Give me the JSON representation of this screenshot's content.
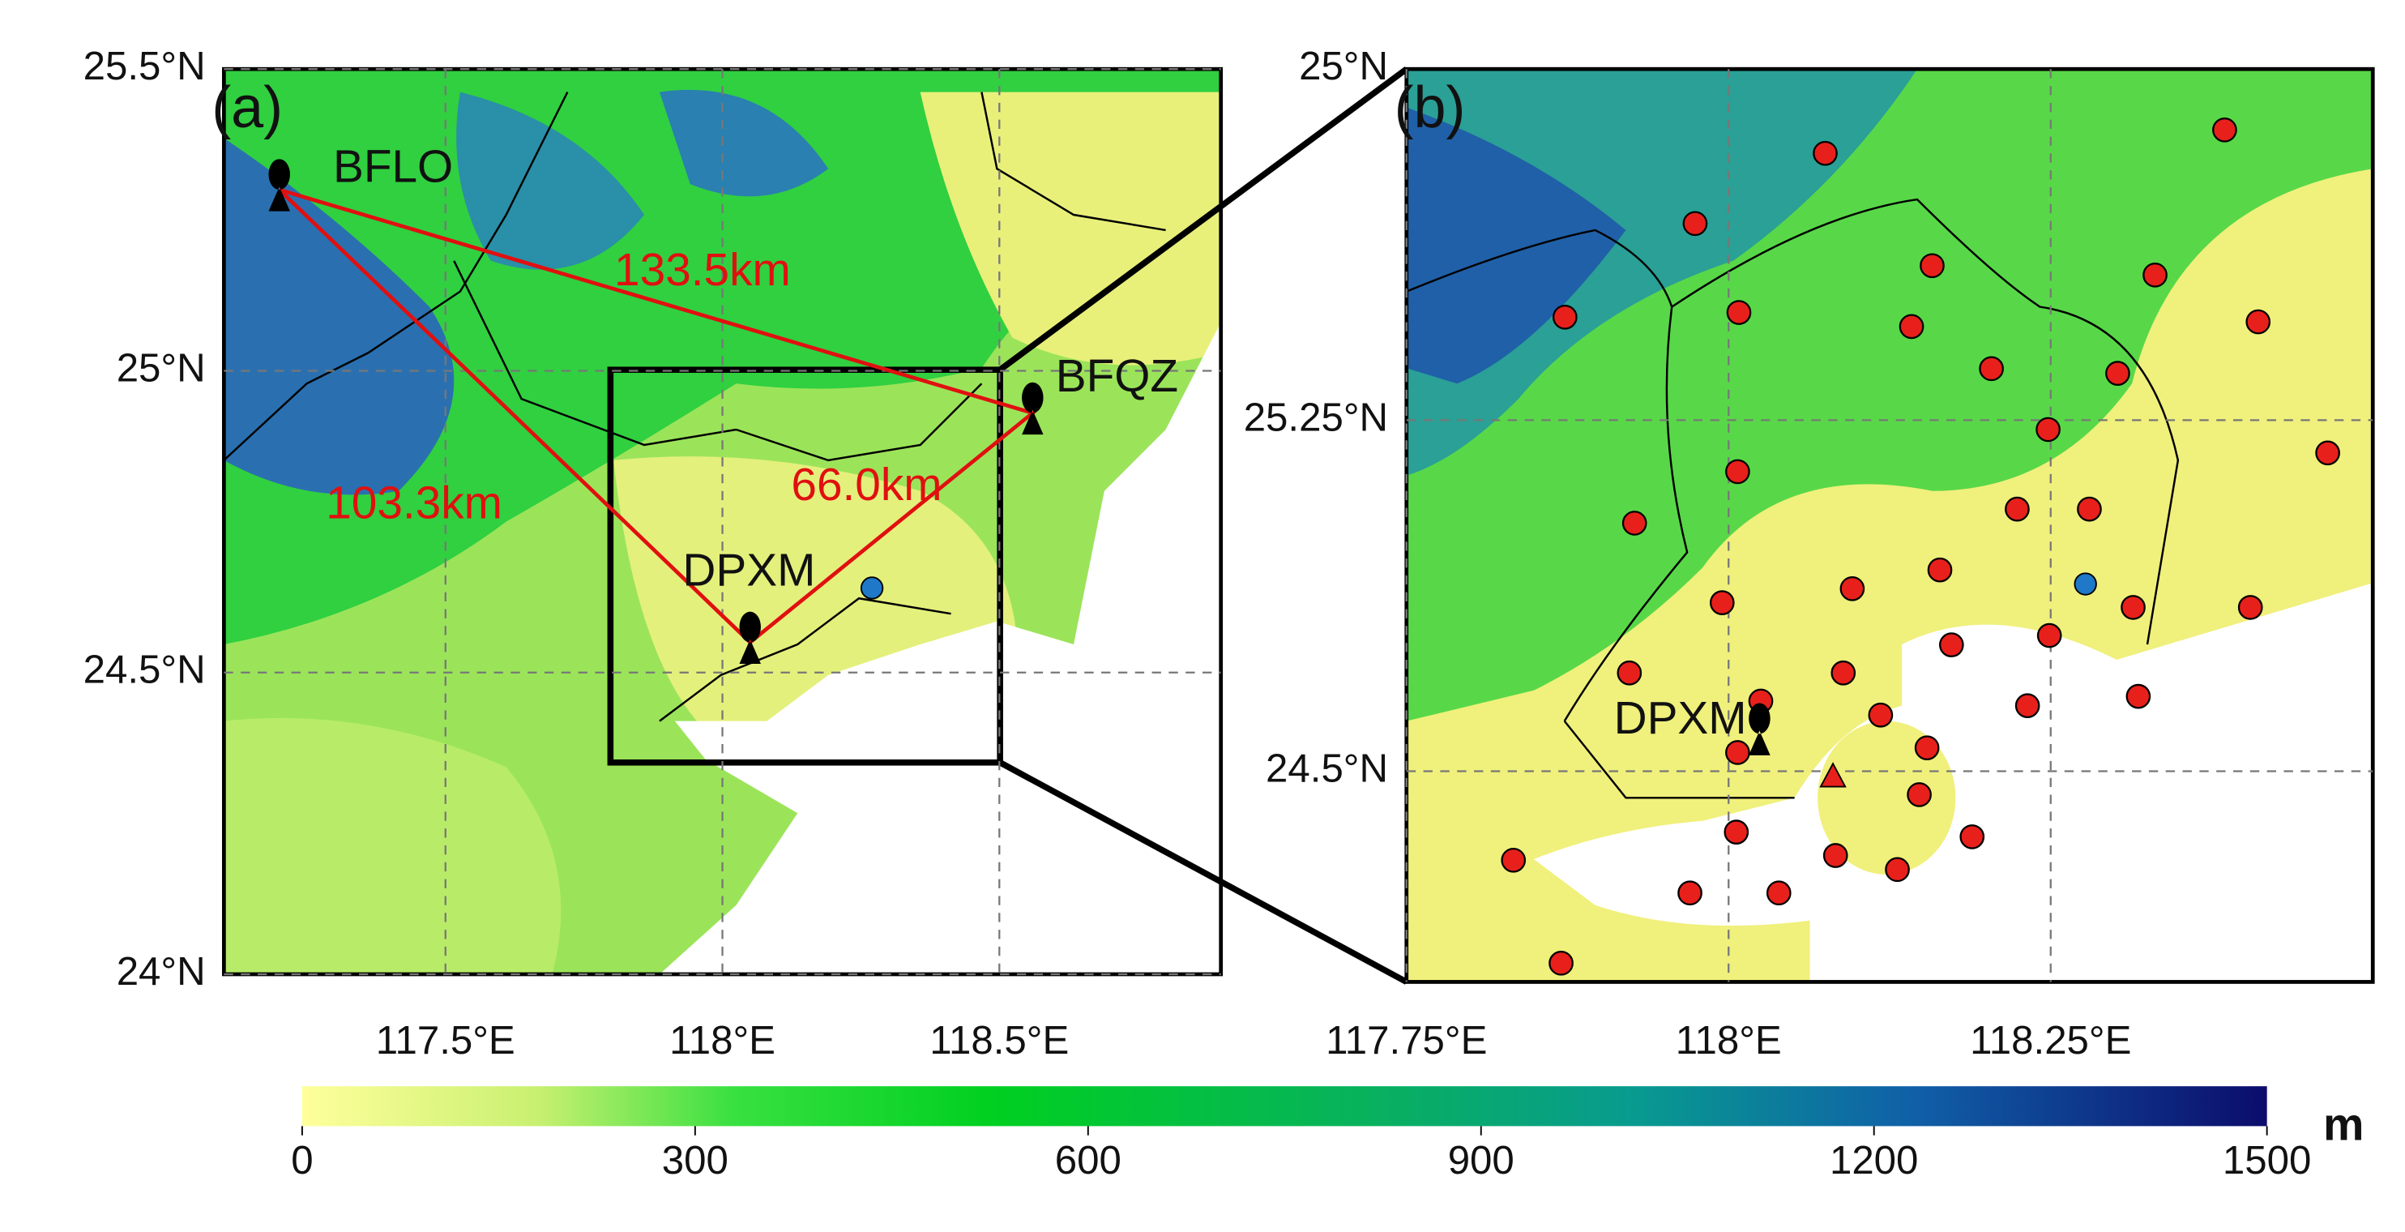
{
  "panels": [
    {
      "label": "(a)",
      "lonlim": [
        117.1,
        118.9
      ],
      "latlim": [
        24,
        25.5
      ],
      "xticks": [
        {
          "value": 117.5,
          "label": "117.5°E"
        },
        {
          "value": 118,
          "label": "118°E"
        },
        {
          "value": 118.5,
          "label": "118.5°E"
        }
      ],
      "yticks": [
        {
          "value": 24,
          "label": "24°N"
        },
        {
          "value": 24.5,
          "label": "24.5°N"
        },
        {
          "value": 25,
          "label": "25°N"
        },
        {
          "value": 25.5,
          "label": "25.5°N"
        }
      ],
      "stations": [
        {
          "name": "BFLO",
          "lon": 117.2,
          "lat": 25.3
        },
        {
          "name": "BFQZ",
          "lon": 118.56,
          "lat": 24.93
        },
        {
          "name": "DPXM",
          "lon": 118.05,
          "lat": 24.55
        }
      ],
      "distances": [
        "133.5km",
        "103.3km",
        "66.0km"
      ],
      "blue_site": {
        "lon": 118.27,
        "lat": 24.64
      }
    },
    {
      "label": "(b)",
      "corner_label": "25°N",
      "lonlim": [
        117.75,
        118.5
      ],
      "latlim": [
        24.05,
        26.0
      ],
      "xticks": [
        {
          "value": 117.75,
          "label": "117.75°E"
        },
        {
          "value": 118,
          "label": "118°E"
        },
        {
          "value": 118.25,
          "label": "118.25°E"
        }
      ],
      "yticks": [
        {
          "value": 24.5,
          "label": "24.5°N"
        },
        {
          "value": 25.25,
          "label": "25.25°N"
        }
      ],
      "stations": [
        {
          "name": "DPXM",
          "lon": 118.024,
          "lat": 24.58
        }
      ],
      "blue_site": {
        "lon": 118.277,
        "lat": 24.9
      },
      "red_site": {
        "lon": 118.081,
        "lat": 24.49
      },
      "sites": [
        {
          "lon": 118.075,
          "lat": 25.82
        },
        {
          "lon": 118.385,
          "lat": 25.87
        },
        {
          "lon": 117.974,
          "lat": 25.67
        },
        {
          "lon": 117.873,
          "lat": 25.47
        },
        {
          "lon": 118.008,
          "lat": 25.48
        },
        {
          "lon": 118.158,
          "lat": 25.58
        },
        {
          "lon": 118.142,
          "lat": 25.45
        },
        {
          "lon": 118.331,
          "lat": 25.56
        },
        {
          "lon": 118.411,
          "lat": 25.46
        },
        {
          "lon": 118.204,
          "lat": 25.36
        },
        {
          "lon": 118.302,
          "lat": 25.35
        },
        {
          "lon": 118.248,
          "lat": 25.23
        },
        {
          "lon": 118.465,
          "lat": 25.18
        },
        {
          "lon": 118.007,
          "lat": 25.14
        },
        {
          "lon": 117.927,
          "lat": 25.03
        },
        {
          "lon": 118.224,
          "lat": 25.06
        },
        {
          "lon": 118.28,
          "lat": 25.06
        },
        {
          "lon": 118.164,
          "lat": 24.93
        },
        {
          "lon": 118.096,
          "lat": 24.89
        },
        {
          "lon": 117.995,
          "lat": 24.86
        },
        {
          "lon": 118.314,
          "lat": 24.85
        },
        {
          "lon": 118.405,
          "lat": 24.85
        },
        {
          "lon": 118.173,
          "lat": 24.77
        },
        {
          "lon": 118.249,
          "lat": 24.79
        },
        {
          "lon": 117.923,
          "lat": 24.71
        },
        {
          "lon": 118.089,
          "lat": 24.71
        },
        {
          "lon": 118.025,
          "lat": 24.65
        },
        {
          "lon": 118.232,
          "lat": 24.64
        },
        {
          "lon": 118.118,
          "lat": 24.62
        },
        {
          "lon": 118.318,
          "lat": 24.66
        },
        {
          "lon": 118.007,
          "lat": 24.54
        },
        {
          "lon": 118.154,
          "lat": 24.55
        },
        {
          "lon": 118.148,
          "lat": 24.45
        },
        {
          "lon": 118.006,
          "lat": 24.37
        },
        {
          "lon": 118.083,
          "lat": 24.32
        },
        {
          "lon": 118.131,
          "lat": 24.29
        },
        {
          "lon": 118.189,
          "lat": 24.36
        },
        {
          "lon": 117.833,
          "lat": 24.31
        },
        {
          "lon": 117.97,
          "lat": 24.24
        },
        {
          "lon": 118.039,
          "lat": 24.24
        },
        {
          "lon": 117.87,
          "lat": 24.09
        }
      ]
    }
  ],
  "colorbar": {
    "lim": [
      0,
      1500
    ],
    "ticks": [
      0,
      300,
      600,
      900,
      1200,
      1500
    ],
    "unit": "m"
  }
}
